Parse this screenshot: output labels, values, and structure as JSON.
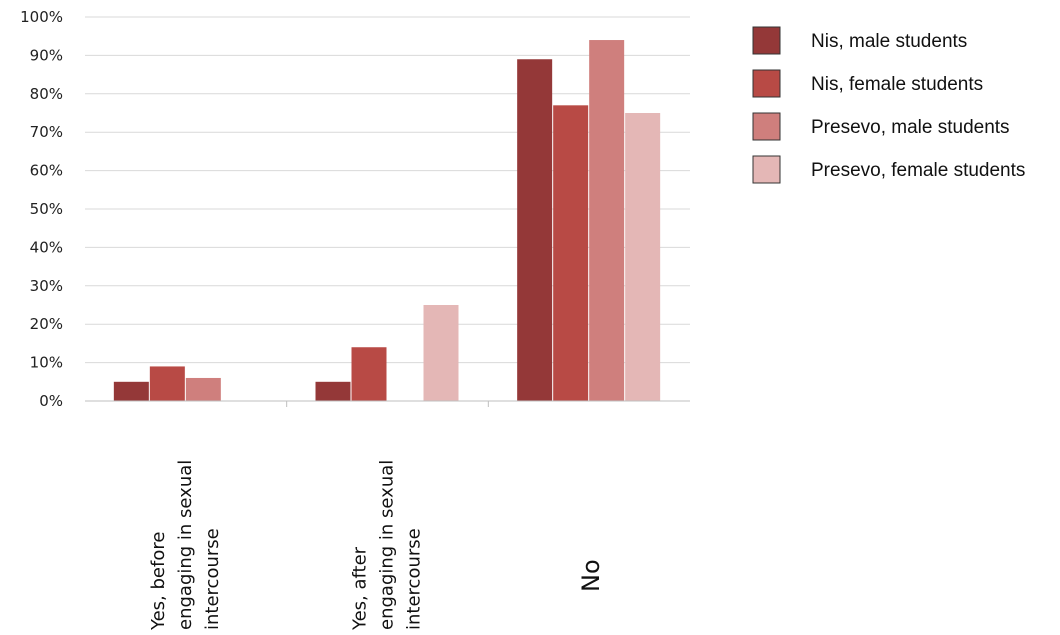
{
  "chart_data": {
    "type": "bar",
    "categories": [
      [
        "Yes, before",
        "engaging in sexual",
        "intercourse"
      ],
      [
        "Yes, after",
        "engaging in sexual",
        "intercourse"
      ],
      [
        "No"
      ]
    ],
    "ylim": [
      0,
      100
    ],
    "yticks": [
      0,
      10,
      20,
      30,
      40,
      50,
      60,
      70,
      80,
      90,
      100
    ],
    "ytick_labels": [
      "0%",
      "10%",
      "20%",
      "30%",
      "40%",
      "50%",
      "60%",
      "70%",
      "80%",
      "90%",
      "100%"
    ],
    "grid": true,
    "legend_position": "right",
    "series": [
      {
        "name": "Nis, male students",
        "color": "#943838",
        "values": [
          5,
          5,
          89
        ]
      },
      {
        "name": "Nis, female students",
        "color": "#b84a45",
        "values": [
          9,
          14,
          77
        ]
      },
      {
        "name": "Presevo, male students",
        "color": "#cf7f7d",
        "values": [
          6,
          null,
          94
        ]
      },
      {
        "name": "Presevo, female students",
        "color": "#e4b7b6",
        "values": [
          null,
          25,
          75
        ]
      }
    ]
  }
}
